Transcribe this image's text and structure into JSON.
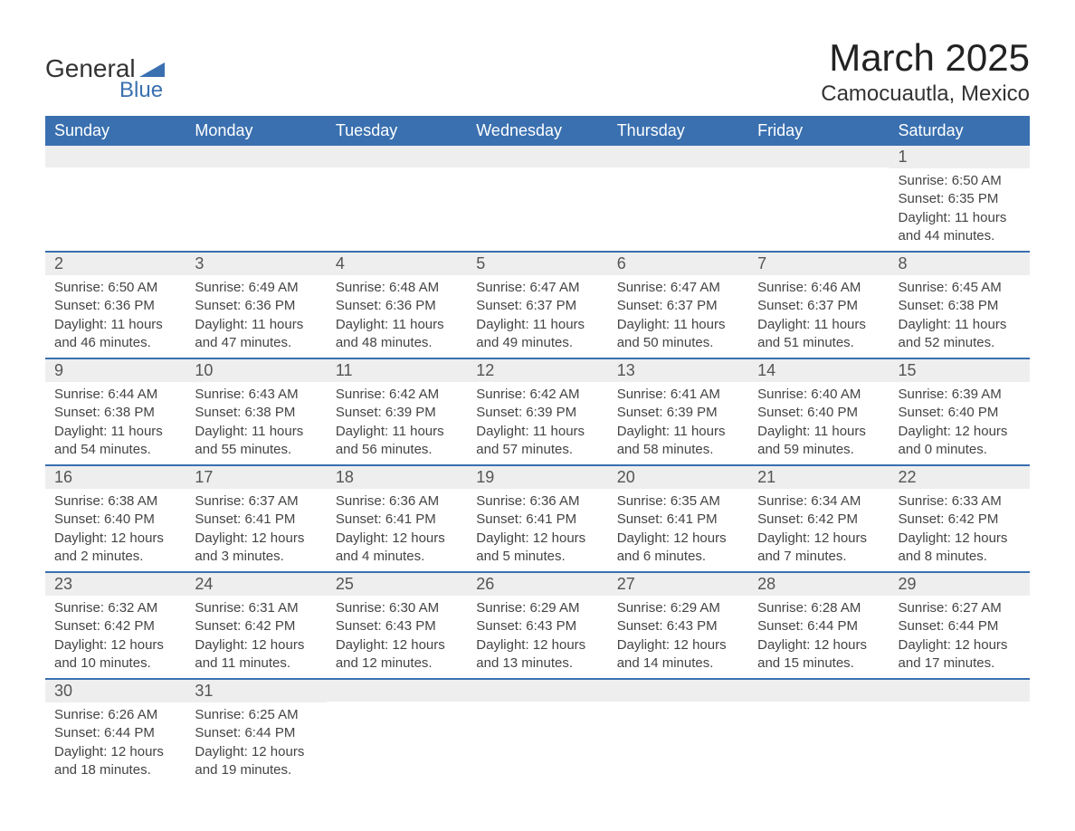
{
  "logo": {
    "brand_top": "General",
    "brand_bottom": "Blue",
    "shape_color": "#3a70b0",
    "text_color": "#333333"
  },
  "title": "March 2025",
  "location": "Camocuautla, Mexico",
  "colors": {
    "header_bg": "#3a70b0",
    "header_fg": "#ffffff",
    "daynum_bg": "#eeeeee",
    "row_divider": "#3a70b0",
    "body_text": "#444444"
  },
  "typography": {
    "title_fontsize": 42,
    "location_fontsize": 24,
    "header_fontsize": 18,
    "daynum_fontsize": 18,
    "body_fontsize": 15
  },
  "layout": {
    "columns": 7,
    "rows": 6,
    "first_day_column": 6
  },
  "weekdays": [
    "Sunday",
    "Monday",
    "Tuesday",
    "Wednesday",
    "Thursday",
    "Friday",
    "Saturday"
  ],
  "weeks": [
    [
      null,
      null,
      null,
      null,
      null,
      null,
      {
        "day": "1",
        "sunrise": "Sunrise: 6:50 AM",
        "sunset": "Sunset: 6:35 PM",
        "dl1": "Daylight: 11 hours",
        "dl2": "and 44 minutes."
      }
    ],
    [
      {
        "day": "2",
        "sunrise": "Sunrise: 6:50 AM",
        "sunset": "Sunset: 6:36 PM",
        "dl1": "Daylight: 11 hours",
        "dl2": "and 46 minutes."
      },
      {
        "day": "3",
        "sunrise": "Sunrise: 6:49 AM",
        "sunset": "Sunset: 6:36 PM",
        "dl1": "Daylight: 11 hours",
        "dl2": "and 47 minutes."
      },
      {
        "day": "4",
        "sunrise": "Sunrise: 6:48 AM",
        "sunset": "Sunset: 6:36 PM",
        "dl1": "Daylight: 11 hours",
        "dl2": "and 48 minutes."
      },
      {
        "day": "5",
        "sunrise": "Sunrise: 6:47 AM",
        "sunset": "Sunset: 6:37 PM",
        "dl1": "Daylight: 11 hours",
        "dl2": "and 49 minutes."
      },
      {
        "day": "6",
        "sunrise": "Sunrise: 6:47 AM",
        "sunset": "Sunset: 6:37 PM",
        "dl1": "Daylight: 11 hours",
        "dl2": "and 50 minutes."
      },
      {
        "day": "7",
        "sunrise": "Sunrise: 6:46 AM",
        "sunset": "Sunset: 6:37 PM",
        "dl1": "Daylight: 11 hours",
        "dl2": "and 51 minutes."
      },
      {
        "day": "8",
        "sunrise": "Sunrise: 6:45 AM",
        "sunset": "Sunset: 6:38 PM",
        "dl1": "Daylight: 11 hours",
        "dl2": "and 52 minutes."
      }
    ],
    [
      {
        "day": "9",
        "sunrise": "Sunrise: 6:44 AM",
        "sunset": "Sunset: 6:38 PM",
        "dl1": "Daylight: 11 hours",
        "dl2": "and 54 minutes."
      },
      {
        "day": "10",
        "sunrise": "Sunrise: 6:43 AM",
        "sunset": "Sunset: 6:38 PM",
        "dl1": "Daylight: 11 hours",
        "dl2": "and 55 minutes."
      },
      {
        "day": "11",
        "sunrise": "Sunrise: 6:42 AM",
        "sunset": "Sunset: 6:39 PM",
        "dl1": "Daylight: 11 hours",
        "dl2": "and 56 minutes."
      },
      {
        "day": "12",
        "sunrise": "Sunrise: 6:42 AM",
        "sunset": "Sunset: 6:39 PM",
        "dl1": "Daylight: 11 hours",
        "dl2": "and 57 minutes."
      },
      {
        "day": "13",
        "sunrise": "Sunrise: 6:41 AM",
        "sunset": "Sunset: 6:39 PM",
        "dl1": "Daylight: 11 hours",
        "dl2": "and 58 minutes."
      },
      {
        "day": "14",
        "sunrise": "Sunrise: 6:40 AM",
        "sunset": "Sunset: 6:40 PM",
        "dl1": "Daylight: 11 hours",
        "dl2": "and 59 minutes."
      },
      {
        "day": "15",
        "sunrise": "Sunrise: 6:39 AM",
        "sunset": "Sunset: 6:40 PM",
        "dl1": "Daylight: 12 hours",
        "dl2": "and 0 minutes."
      }
    ],
    [
      {
        "day": "16",
        "sunrise": "Sunrise: 6:38 AM",
        "sunset": "Sunset: 6:40 PM",
        "dl1": "Daylight: 12 hours",
        "dl2": "and 2 minutes."
      },
      {
        "day": "17",
        "sunrise": "Sunrise: 6:37 AM",
        "sunset": "Sunset: 6:41 PM",
        "dl1": "Daylight: 12 hours",
        "dl2": "and 3 minutes."
      },
      {
        "day": "18",
        "sunrise": "Sunrise: 6:36 AM",
        "sunset": "Sunset: 6:41 PM",
        "dl1": "Daylight: 12 hours",
        "dl2": "and 4 minutes."
      },
      {
        "day": "19",
        "sunrise": "Sunrise: 6:36 AM",
        "sunset": "Sunset: 6:41 PM",
        "dl1": "Daylight: 12 hours",
        "dl2": "and 5 minutes."
      },
      {
        "day": "20",
        "sunrise": "Sunrise: 6:35 AM",
        "sunset": "Sunset: 6:41 PM",
        "dl1": "Daylight: 12 hours",
        "dl2": "and 6 minutes."
      },
      {
        "day": "21",
        "sunrise": "Sunrise: 6:34 AM",
        "sunset": "Sunset: 6:42 PM",
        "dl1": "Daylight: 12 hours",
        "dl2": "and 7 minutes."
      },
      {
        "day": "22",
        "sunrise": "Sunrise: 6:33 AM",
        "sunset": "Sunset: 6:42 PM",
        "dl1": "Daylight: 12 hours",
        "dl2": "and 8 minutes."
      }
    ],
    [
      {
        "day": "23",
        "sunrise": "Sunrise: 6:32 AM",
        "sunset": "Sunset: 6:42 PM",
        "dl1": "Daylight: 12 hours",
        "dl2": "and 10 minutes."
      },
      {
        "day": "24",
        "sunrise": "Sunrise: 6:31 AM",
        "sunset": "Sunset: 6:42 PM",
        "dl1": "Daylight: 12 hours",
        "dl2": "and 11 minutes."
      },
      {
        "day": "25",
        "sunrise": "Sunrise: 6:30 AM",
        "sunset": "Sunset: 6:43 PM",
        "dl1": "Daylight: 12 hours",
        "dl2": "and 12 minutes."
      },
      {
        "day": "26",
        "sunrise": "Sunrise: 6:29 AM",
        "sunset": "Sunset: 6:43 PM",
        "dl1": "Daylight: 12 hours",
        "dl2": "and 13 minutes."
      },
      {
        "day": "27",
        "sunrise": "Sunrise: 6:29 AM",
        "sunset": "Sunset: 6:43 PM",
        "dl1": "Daylight: 12 hours",
        "dl2": "and 14 minutes."
      },
      {
        "day": "28",
        "sunrise": "Sunrise: 6:28 AM",
        "sunset": "Sunset: 6:44 PM",
        "dl1": "Daylight: 12 hours",
        "dl2": "and 15 minutes."
      },
      {
        "day": "29",
        "sunrise": "Sunrise: 6:27 AM",
        "sunset": "Sunset: 6:44 PM",
        "dl1": "Daylight: 12 hours",
        "dl2": "and 17 minutes."
      }
    ],
    [
      {
        "day": "30",
        "sunrise": "Sunrise: 6:26 AM",
        "sunset": "Sunset: 6:44 PM",
        "dl1": "Daylight: 12 hours",
        "dl2": "and 18 minutes."
      },
      {
        "day": "31",
        "sunrise": "Sunrise: 6:25 AM",
        "sunset": "Sunset: 6:44 PM",
        "dl1": "Daylight: 12 hours",
        "dl2": "and 19 minutes."
      },
      null,
      null,
      null,
      null,
      null
    ]
  ]
}
